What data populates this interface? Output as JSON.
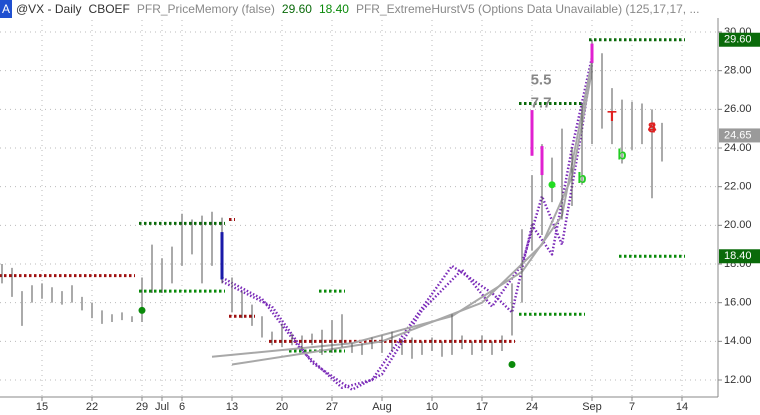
{
  "header": {
    "badge": "A",
    "symbol": "@VX - Daily",
    "exchange": "CBOEF",
    "study1": "PFR_PriceMemory (false)",
    "value1": "29.60",
    "value2": "18.40",
    "study2": "PFR_ExtremeHurstV5 (Options Data Unavailable) (125,17,17, ..."
  },
  "chart_data": {
    "type": "hl",
    "x": [
      0,
      1,
      2,
      3,
      4,
      5,
      6,
      7,
      8,
      9,
      10,
      11,
      12,
      13,
      14,
      15,
      16,
      17,
      18,
      19,
      20,
      21,
      22,
      23,
      24,
      25,
      26,
      27,
      28,
      29,
      30,
      31,
      32,
      33,
      34,
      35,
      36,
      37,
      38,
      39,
      40,
      41,
      42,
      43,
      44,
      45,
      46,
      47,
      48,
      49,
      50,
      51,
      52,
      53,
      54,
      55,
      56,
      57,
      58,
      59,
      60,
      61,
      62,
      63,
      64,
      65,
      66
    ],
    "high": [
      18.0,
      17.8,
      16.6,
      16.9,
      17.0,
      16.8,
      16.6,
      16.9,
      16.3,
      16.0,
      15.6,
      15.4,
      15.5,
      15.3,
      17.3,
      19.0,
      18.3,
      18.9,
      20.6,
      20.3,
      20.5,
      20.7,
      20.4,
      17.3,
      16.6,
      15.9,
      15.3,
      14.5,
      14.9,
      14.4,
      14.3,
      14.4,
      14.6,
      15.1,
      15.4,
      13.9,
      13.9,
      14.2,
      14.3,
      14.5,
      14.1,
      14.2,
      14.0,
      14.2,
      14.0,
      15.4,
      14.3,
      14.0,
      14.3,
      14.0,
      14.3,
      17.0,
      19.8,
      22.6,
      24.2,
      23.5,
      25.0,
      24.0,
      26.3,
      29.6,
      28.9,
      27.1,
      26.5,
      26.4,
      26.3,
      26.0,
      25.3
    ],
    "low": [
      17.0,
      16.3,
      14.8,
      16.0,
      16.2,
      16.0,
      15.9,
      16.0,
      15.6,
      15.2,
      14.9,
      15.0,
      15.1,
      15.0,
      15.0,
      16.5,
      16.5,
      17.0,
      17.9,
      18.5,
      17.0,
      17.9,
      17.0,
      15.5,
      15.2,
      14.8,
      14.2,
      13.8,
      13.7,
      13.8,
      13.6,
      13.8,
      13.3,
      13.4,
      13.7,
      13.4,
      13.3,
      13.6,
      13.4,
      13.5,
      13.3,
      13.1,
      13.3,
      13.5,
      13.2,
      13.3,
      13.6,
      13.3,
      13.5,
      13.3,
      13.5,
      14.3,
      16.0,
      18.7,
      19.5,
      21.2,
      20.3,
      21.0,
      22.1,
      24.2,
      25.0,
      24.2,
      23.2,
      23.9,
      24.2,
      21.4,
      23.3
    ],
    "color": "#555555",
    "xlim": [
      -0.2,
      71.6
    ],
    "ylim": [
      11.2,
      30.15
    ],
    "xticks": [
      {
        "value": 4,
        "label": "15"
      },
      {
        "value": 9,
        "label": "22"
      },
      {
        "value": 14,
        "label": "29"
      },
      {
        "value": 16,
        "label": "Jul"
      },
      {
        "value": 18,
        "label": "6"
      },
      {
        "value": 23,
        "label": "13"
      },
      {
        "value": 28,
        "label": "20"
      },
      {
        "value": 33,
        "label": "27"
      },
      {
        "value": 38,
        "label": "Aug"
      },
      {
        "value": 43,
        "label": "10"
      },
      {
        "value": 48,
        "label": "17"
      },
      {
        "value": 53,
        "label": "24"
      },
      {
        "value": 59,
        "label": "Sep"
      },
      {
        "value": 63,
        "label": "7"
      },
      {
        "value": 68,
        "label": "14"
      }
    ],
    "yticks": [
      {
        "value": 12,
        "label": "12.00"
      },
      {
        "value": 14,
        "label": "14.00"
      },
      {
        "value": 16,
        "label": "16.00"
      },
      {
        "value": 18,
        "label": "18.00"
      },
      {
        "value": 20,
        "label": "20.00"
      },
      {
        "value": 22,
        "label": "22.00"
      },
      {
        "value": 24,
        "label": "24.00"
      },
      {
        "value": 26,
        "label": "26.00"
      },
      {
        "value": 28,
        "label": "28.00"
      },
      {
        "value": 30,
        "label": "30.00"
      }
    ],
    "grid": true,
    "price_labels": [
      {
        "value": 29.6,
        "label": "29.60",
        "color": "#0a6a0a"
      },
      {
        "value": 24.65,
        "label": "24.65",
        "color": "#9a9a9a"
      },
      {
        "value": 18.4,
        "label": "18.40",
        "color": "#0a6a0a"
      }
    ],
    "highlights": [
      {
        "x": 22,
        "high": 19.65,
        "low": 17.2,
        "color": "#1a1aa8"
      },
      {
        "x": 53,
        "high": 25.96,
        "low": 23.6,
        "color": "#e020d0"
      },
      {
        "x": 54,
        "high": 24.1,
        "low": 22.6,
        "color": "#e020d0"
      },
      {
        "x": 59,
        "high": 29.4,
        "low": 28.4,
        "color": "#e020d0"
      }
    ],
    "levels": [
      {
        "value": 17.4,
        "from": 0,
        "to": 13,
        "color": "#a01010"
      },
      {
        "value": 20.1,
        "from": 14,
        "to": 22,
        "color": "#0a6a0a"
      },
      {
        "value": 20.3,
        "from": 23,
        "to": 23,
        "color": "#a01010"
      },
      {
        "value": 16.6,
        "from": 14,
        "to": 22,
        "color": "#0a8a0a"
      },
      {
        "value": 15.3,
        "from": 23,
        "to": 25,
        "color": "#a01010"
      },
      {
        "value": 16.6,
        "from": 32,
        "to": 34,
        "color": "#0a8a0a"
      },
      {
        "value": 14.0,
        "from": 27,
        "to": 51,
        "color": "#a01010"
      },
      {
        "value": 13.5,
        "from": 29,
        "to": 34,
        "color": "#0a8a0a"
      },
      {
        "value": 26.3,
        "from": 52,
        "to": 58,
        "color": "#0a6a0a"
      },
      {
        "value": 15.4,
        "from": 52,
        "to": 58,
        "color": "#0a8a0a"
      },
      {
        "value": 29.6,
        "from": 59,
        "to": 68,
        "color": "#0a6a0a"
      },
      {
        "value": 18.4,
        "from": 62,
        "to": 68,
        "color": "#0a8a0a"
      }
    ],
    "curves": [
      {
        "color": "#7a2ab8",
        "dashed": true,
        "x": [
          22,
          26,
          30,
          34,
          37,
          41,
          45,
          49,
          51,
          53,
          55,
          57,
          59
        ],
        "values": [
          17.3,
          16.2,
          13.5,
          11.6,
          12.0,
          15.0,
          17.9,
          16.5,
          15.5,
          20.0,
          18.5,
          24.0,
          28.7
        ]
      },
      {
        "color": "#7a2ab8",
        "dashed": true,
        "x": [
          22,
          27,
          31,
          35,
          38,
          42,
          46,
          49,
          52,
          54,
          56,
          58,
          59
        ],
        "values": [
          17.1,
          15.8,
          12.9,
          11.5,
          12.3,
          15.6,
          17.7,
          15.8,
          18.0,
          21.5,
          19.0,
          25.0,
          28.4
        ]
      },
      {
        "color": "#a8a8a8",
        "dashed": false,
        "x": [
          21,
          35,
          45,
          52,
          56,
          59
        ],
        "values": [
          13.2,
          13.9,
          15.3,
          17.6,
          20.5,
          28.5
        ]
      },
      {
        "color": "#a8a8a8",
        "dashed": false,
        "x": [
          23,
          38,
          48,
          54,
          57,
          59
        ],
        "values": [
          12.8,
          14.0,
          16.0,
          19.0,
          22.5,
          28.0
        ]
      }
    ],
    "markers": [
      {
        "x": 55,
        "value": 22.1,
        "color": "#22dd22"
      },
      {
        "x": 14,
        "value": 15.6,
        "color": "#0a8a0a"
      },
      {
        "x": 51,
        "value": 12.8,
        "color": "#0a8a0a"
      }
    ],
    "annotations": [
      {
        "text": "5.5",
        "x": 53.9,
        "y": 27.5,
        "color": "#888888"
      },
      {
        "text": "7.7",
        "x": 53.9,
        "y": 26.3,
        "color": "#888888"
      },
      {
        "text": "T",
        "x": 61,
        "y": 25.6,
        "color": "#e02020"
      },
      {
        "text": "b",
        "x": 62,
        "y": 23.6,
        "color": "#22cc22"
      },
      {
        "text": "b",
        "x": 58,
        "y": 22.4,
        "color": "#22cc22"
      },
      {
        "text": "4",
        "x": 65,
        "y": 25.0,
        "color": "#e02020"
      },
      {
        "text": "8",
        "x": 65,
        "y": 25.0,
        "color": "#e02020"
      }
    ]
  }
}
